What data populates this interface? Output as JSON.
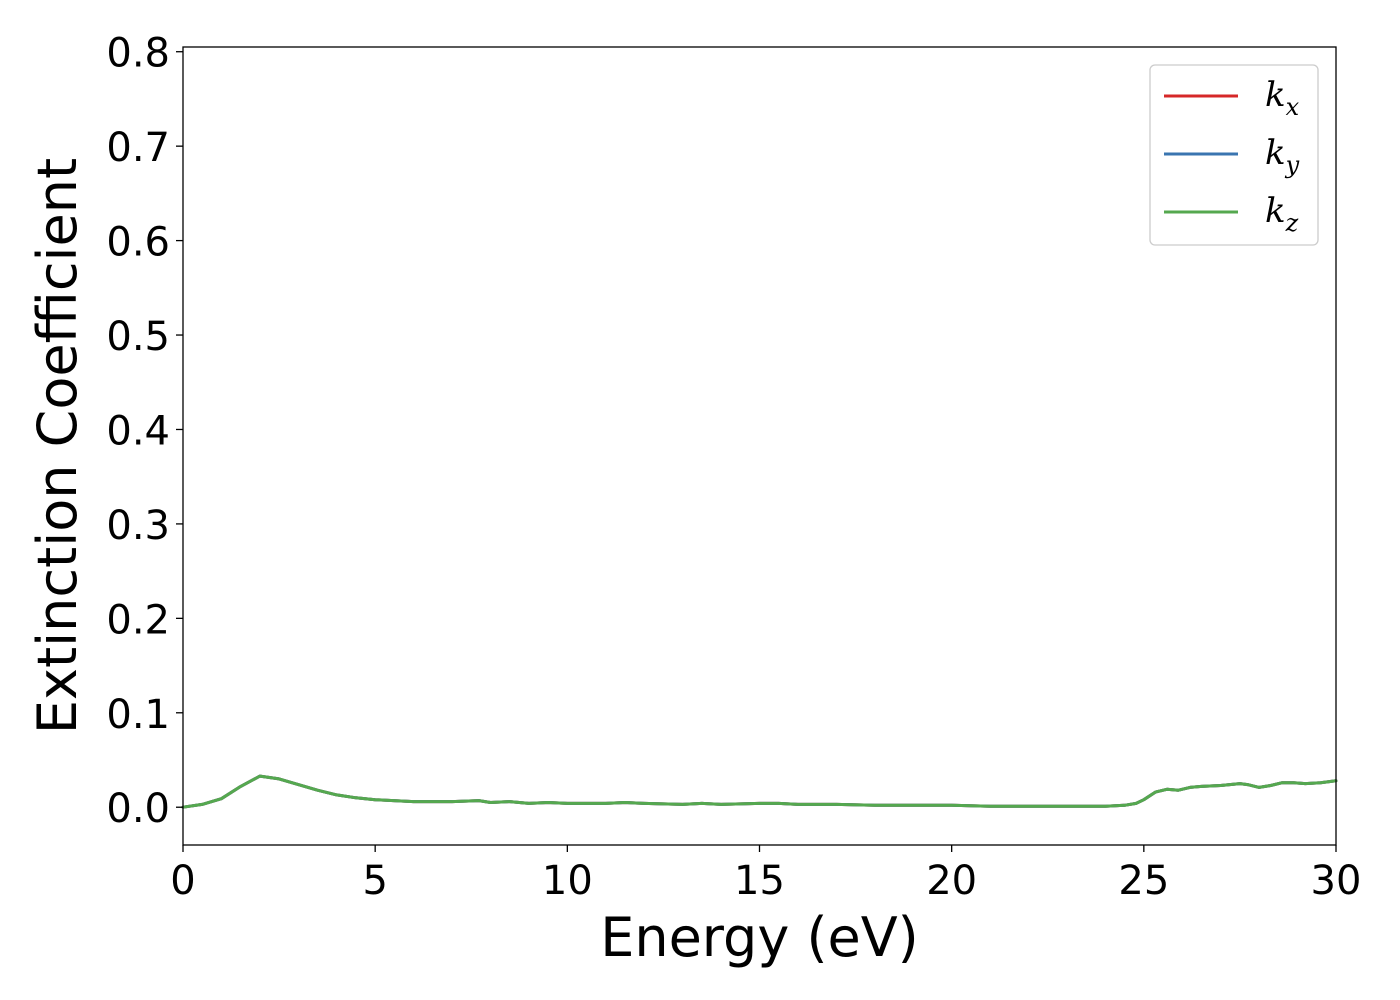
{
  "chart_data": {
    "type": "line",
    "xlabel": "Energy (eV)",
    "ylabel": "Extinction Coefficient",
    "xlim": [
      0,
      30
    ],
    "ylim": [
      -0.04,
      0.805
    ],
    "xticks": [
      0,
      5,
      10,
      15,
      20,
      25,
      30
    ],
    "xtick_labels": [
      "0",
      "5",
      "10",
      "15",
      "20",
      "25",
      "30"
    ],
    "yticks": [
      0.0,
      0.1,
      0.2,
      0.3,
      0.4,
      0.5,
      0.6,
      0.7,
      0.8
    ],
    "ytick_labels": [
      "0.0",
      "0.1",
      "0.2",
      "0.3",
      "0.4",
      "0.5",
      "0.6",
      "0.7",
      "0.8"
    ],
    "grid": false,
    "legend_position": "top-right",
    "x": [
      0,
      0.5,
      1.0,
      1.5,
      2.0,
      2.5,
      3.0,
      3.5,
      4.0,
      4.5,
      5.0,
      6.0,
      7.0,
      7.7,
      8.0,
      8.5,
      9.0,
      9.5,
      10.0,
      10.5,
      11.0,
      11.5,
      12.0,
      13.0,
      13.5,
      14.0,
      15.0,
      15.5,
      16.0,
      17.0,
      18.0,
      19.0,
      20.0,
      21.0,
      22.0,
      23.0,
      24.0,
      24.5,
      24.8,
      25.0,
      25.3,
      25.6,
      25.9,
      26.2,
      26.5,
      27.0,
      27.5,
      27.7,
      28.0,
      28.3,
      28.6,
      28.9,
      29.2,
      29.6,
      30.0
    ],
    "series": [
      {
        "name": "k",
        "subscript": "x",
        "color": "#d62728",
        "values": [
          0.0,
          0.003,
          0.009,
          0.022,
          0.033,
          0.03,
          0.024,
          0.018,
          0.013,
          0.01,
          0.008,
          0.006,
          0.006,
          0.007,
          0.005,
          0.006,
          0.004,
          0.005,
          0.004,
          0.004,
          0.004,
          0.005,
          0.004,
          0.003,
          0.004,
          0.003,
          0.004,
          0.004,
          0.003,
          0.003,
          0.002,
          0.002,
          0.002,
          0.001,
          0.001,
          0.001,
          0.001,
          0.002,
          0.004,
          0.008,
          0.016,
          0.019,
          0.018,
          0.021,
          0.022,
          0.023,
          0.025,
          0.024,
          0.021,
          0.023,
          0.026,
          0.026,
          0.025,
          0.026,
          0.028
        ]
      },
      {
        "name": "k",
        "subscript": "y",
        "color": "#3a75b0",
        "values": [
          0.0,
          0.003,
          0.009,
          0.022,
          0.033,
          0.03,
          0.024,
          0.018,
          0.013,
          0.01,
          0.008,
          0.006,
          0.006,
          0.007,
          0.005,
          0.006,
          0.004,
          0.005,
          0.004,
          0.004,
          0.004,
          0.005,
          0.004,
          0.003,
          0.004,
          0.003,
          0.004,
          0.004,
          0.003,
          0.003,
          0.002,
          0.002,
          0.002,
          0.001,
          0.001,
          0.001,
          0.001,
          0.002,
          0.004,
          0.008,
          0.016,
          0.019,
          0.018,
          0.021,
          0.022,
          0.023,
          0.025,
          0.024,
          0.021,
          0.023,
          0.026,
          0.026,
          0.025,
          0.026,
          0.028
        ]
      },
      {
        "name": "k",
        "subscript": "z",
        "color": "#55a84f",
        "values": [
          0.0,
          0.003,
          0.009,
          0.022,
          0.033,
          0.03,
          0.024,
          0.018,
          0.013,
          0.01,
          0.008,
          0.006,
          0.006,
          0.007,
          0.005,
          0.006,
          0.004,
          0.005,
          0.004,
          0.004,
          0.004,
          0.005,
          0.004,
          0.003,
          0.004,
          0.003,
          0.004,
          0.004,
          0.003,
          0.003,
          0.002,
          0.002,
          0.002,
          0.001,
          0.001,
          0.001,
          0.001,
          0.002,
          0.004,
          0.008,
          0.016,
          0.019,
          0.018,
          0.021,
          0.022,
          0.023,
          0.025,
          0.024,
          0.021,
          0.023,
          0.026,
          0.026,
          0.025,
          0.026,
          0.028
        ]
      }
    ]
  }
}
